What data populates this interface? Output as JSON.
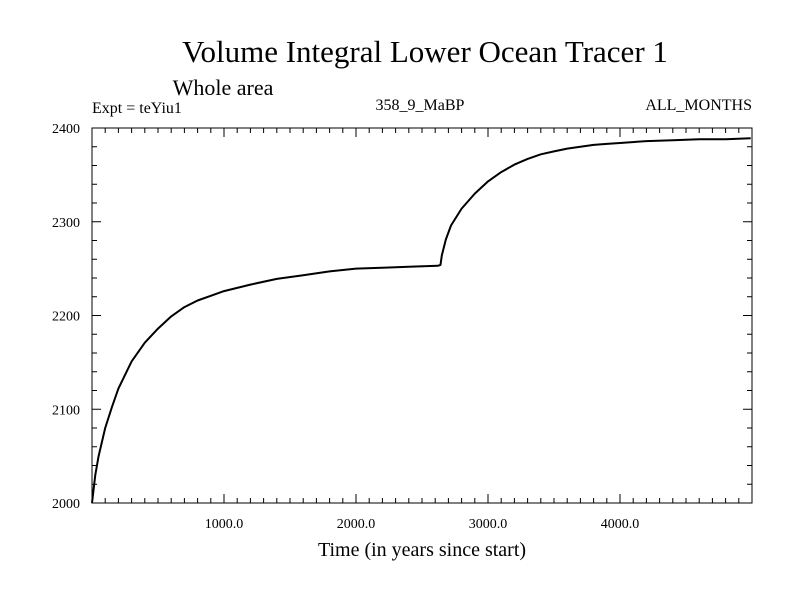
{
  "chart_data": {
    "type": "line",
    "title": "Volume Integral Lower Ocean Tracer 1",
    "subtitle": "Whole area",
    "expt_label": "Expt = teYiu1",
    "run_label": "358_9_MaBP",
    "season_label": "ALL_MONTHS",
    "xlabel": "Time (in years since start)",
    "ylabel": "",
    "xlim": [
      0,
      5000
    ],
    "ylim": [
      2000,
      2400
    ],
    "x_ticks": [
      1000,
      2000,
      3000,
      4000
    ],
    "x_tick_labels": [
      "1000.0",
      "2000.0",
      "3000.0",
      "4000.0"
    ],
    "y_ticks": [
      2000,
      2100,
      2200,
      2300,
      2400
    ],
    "y_tick_labels": [
      "2000",
      "2100",
      "2200",
      "2300",
      "2400"
    ],
    "x_minor_step": 100,
    "y_minor_step": 20,
    "series": [
      {
        "name": "Lower Ocean Tracer 1",
        "color": "#000000",
        "x": [
          0,
          25,
          50,
          100,
          150,
          200,
          300,
          400,
          500,
          600,
          700,
          800,
          900,
          1000,
          1200,
          1400,
          1600,
          1800,
          2000,
          2200,
          2400,
          2620,
          2640,
          2650,
          2680,
          2720,
          2800,
          2900,
          3000,
          3100,
          3200,
          3300,
          3400,
          3500,
          3600,
          3700,
          3800,
          3900,
          4000,
          4200,
          4400,
          4600,
          4800,
          4990
        ],
        "y": [
          2000,
          2030,
          2050,
          2080,
          2102,
          2122,
          2151,
          2171,
          2186,
          2199,
          2209,
          2216,
          2221,
          2226,
          2233,
          2239,
          2243,
          2247,
          2250,
          2251,
          2252,
          2253,
          2254,
          2264,
          2281,
          2296,
          2314,
          2330,
          2343,
          2353,
          2361,
          2367,
          2372,
          2375,
          2378,
          2380,
          2382,
          2383,
          2384,
          2386,
          2387,
          2388,
          2388,
          2389
        ]
      }
    ]
  }
}
